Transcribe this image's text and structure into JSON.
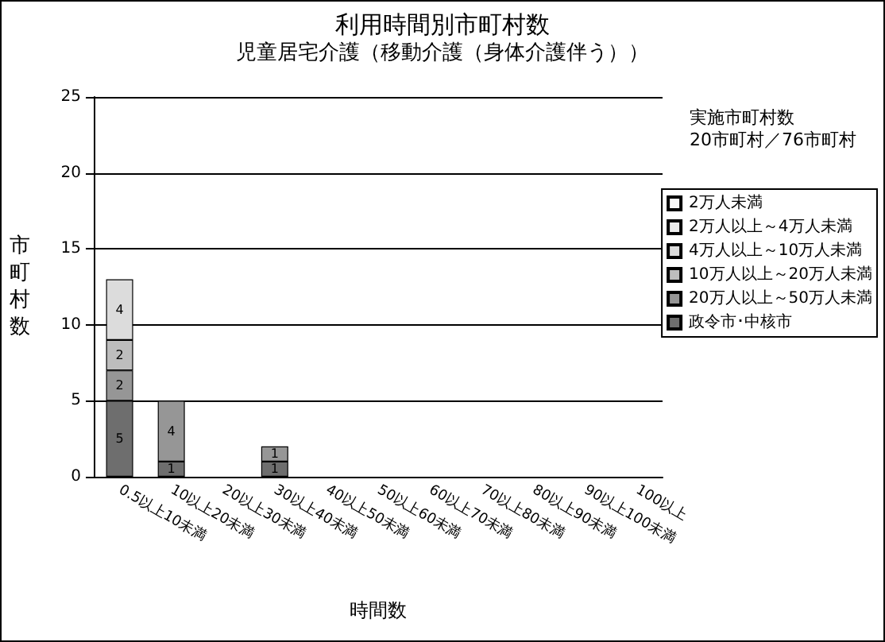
{
  "chart_data": {
    "type": "bar",
    "title": "利用時間別市町村数",
    "subtitle": "児童居宅介護（移動介護（身体介護伴う））",
    "xlabel": "時間数",
    "ylabel": "市町村数",
    "categories": [
      "0.5以上10未満",
      "10以上20未満",
      "20以上30未満",
      "30以上40未満",
      "40以上50未満",
      "50以上60未満",
      "60以上70未満",
      "70以上80未満",
      "80以上90未満",
      "90以上100未満",
      "100以上"
    ],
    "stacked": true,
    "data_labels": true,
    "legend": "right",
    "grid": "y",
    "ylim": [
      0,
      25
    ],
    "yticks": [
      0,
      5,
      10,
      15,
      20,
      25
    ],
    "annotations": [
      "実施市町村数",
      "20市町村／76市町村"
    ],
    "series": [
      {
        "name": "政令市･中核市",
        "color": "#6e6e6e",
        "values": [
          5,
          1,
          null,
          1,
          null,
          null,
          null,
          null,
          null,
          null,
          null
        ]
      },
      {
        "name": "20万人以上～50万人未満",
        "color": "#969696",
        "values": [
          2,
          4,
          null,
          1,
          null,
          null,
          null,
          null,
          null,
          null,
          null
        ]
      },
      {
        "name": "10万人以上～20万人未満",
        "color": "#bdbdbd",
        "values": [
          2,
          null,
          null,
          null,
          null,
          null,
          null,
          null,
          null,
          null,
          null
        ]
      },
      {
        "name": "4万人以上～10万人未満",
        "color": "#dcdcdc",
        "values": [
          4,
          null,
          null,
          null,
          null,
          null,
          null,
          null,
          null,
          null,
          null
        ]
      },
      {
        "name": "2万人以上～4万人未満",
        "color": "#ececec",
        "values": [
          null,
          null,
          null,
          null,
          null,
          null,
          null,
          null,
          null,
          null,
          null
        ]
      },
      {
        "name": "2万人未満",
        "color": "#f8f8f8",
        "values": [
          null,
          null,
          null,
          null,
          null,
          null,
          null,
          null,
          null,
          null,
          null
        ]
      }
    ]
  }
}
